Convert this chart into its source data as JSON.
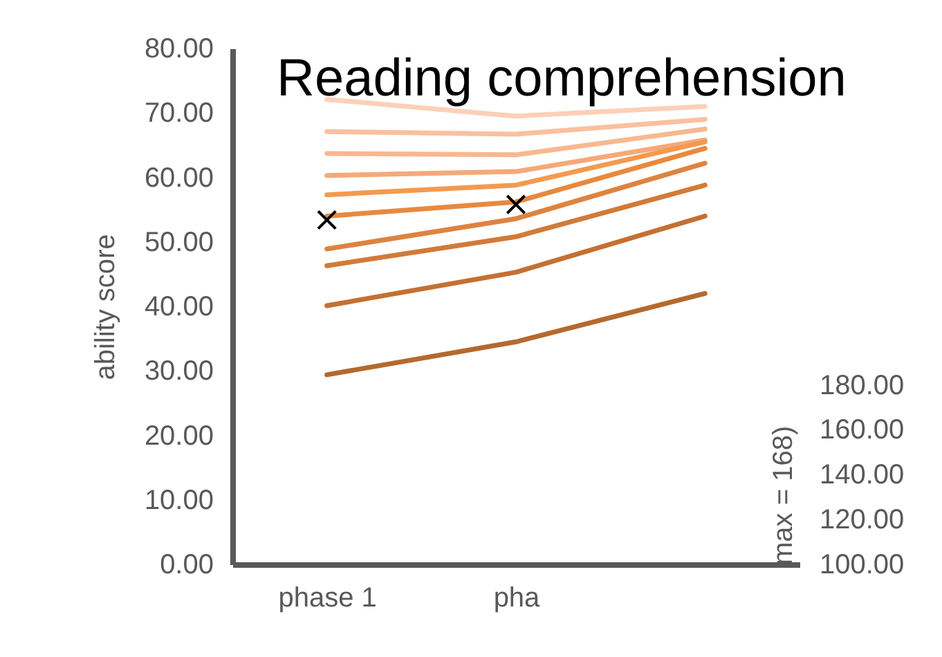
{
  "chart_data": {
    "type": "line",
    "title": "Reading comprehension",
    "ylabel": "ability score",
    "y2label": "max = 168)",
    "categories": [
      "phase 1",
      "pha",
      null
    ],
    "ylim": [
      0,
      80
    ],
    "yticks": [
      {
        "value": 0,
        "label": "0.00"
      },
      {
        "value": 10,
        "label": "10.00"
      },
      {
        "value": 20,
        "label": "20.00"
      },
      {
        "value": 30,
        "label": "30.00"
      },
      {
        "value": 40,
        "label": "40.00"
      },
      {
        "value": 50,
        "label": "50.00"
      },
      {
        "value": 60,
        "label": "60.00"
      },
      {
        "value": 70,
        "label": "70.00"
      },
      {
        "value": 80,
        "label": "80.00"
      }
    ],
    "y2lim": [
      100,
      330
    ],
    "y2ticks": [
      {
        "value": 100,
        "label": "100.00"
      },
      {
        "value": 120,
        "label": "120.00"
      },
      {
        "value": 140,
        "label": "140.00"
      },
      {
        "value": 160,
        "label": "160.00"
      },
      {
        "value": 180,
        "label": "180.00"
      }
    ],
    "series": [
      {
        "color": "#fcd0b8",
        "values": [
          72.1,
          69.5,
          71
        ]
      },
      {
        "color": "#fac0a0",
        "values": [
          67.1,
          66.7,
          69
        ]
      },
      {
        "color": "#f8b890",
        "values": [
          63.7,
          63.5,
          67.5
        ]
      },
      {
        "color": "#f5a97a",
        "values": [
          60.3,
          60.9,
          65.8
        ]
      },
      {
        "color": "#f39a4f",
        "values": [
          57.3,
          58.8,
          65.5
        ]
      },
      {
        "color": "#e8893e",
        "values": [
          54.0,
          56.2,
          64.5
        ]
      },
      {
        "color": "#de8340",
        "values": [
          48.9,
          53.6,
          62.2
        ]
      },
      {
        "color": "#d27a38",
        "values": [
          46.3,
          50.8,
          58.8
        ]
      },
      {
        "color": "#c47032",
        "values": [
          40.1,
          45.3,
          54
        ]
      },
      {
        "color": "#b5692e",
        "values": [
          29.4,
          34.5,
          42
        ]
      },
      {
        "type": "scatter",
        "marker": "cross",
        "color": "#000000",
        "values": [
          53.4,
          55.8,
          null
        ]
      }
    ]
  }
}
